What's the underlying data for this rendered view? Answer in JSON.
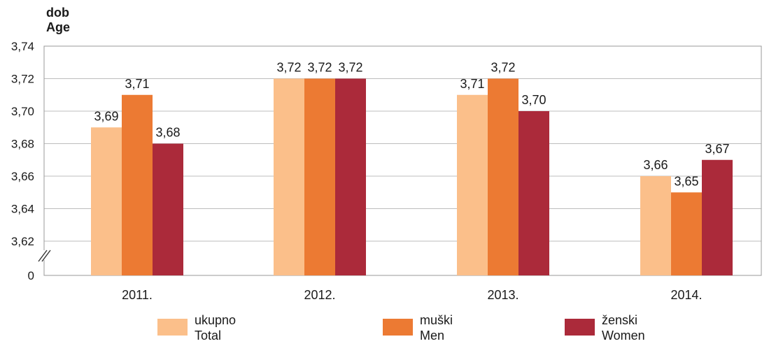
{
  "chart_data": {
    "type": "bar",
    "ylabel_lines": [
      "dob",
      "Age"
    ],
    "categories": [
      "2011.",
      "2012.",
      "2013.",
      "2014."
    ],
    "series": [
      {
        "name_lines": [
          "ukupno",
          "Total"
        ],
        "color": "#fbbf8a",
        "values": [
          3.69,
          3.72,
          3.71,
          3.66
        ],
        "labels": [
          "3,69",
          "3,72",
          "3,71",
          "3,66"
        ]
      },
      {
        "name_lines": [
          "muški",
          "Men"
        ],
        "color": "#ec7a33",
        "values": [
          3.71,
          3.72,
          3.72,
          3.65
        ],
        "labels": [
          "3,71",
          "3,72",
          "3,72",
          "3,65"
        ]
      },
      {
        "name_lines": [
          "ženski",
          "Women"
        ],
        "color": "#ab2a3a",
        "values": [
          3.68,
          3.72,
          3.7,
          3.67
        ],
        "labels": [
          "3,68",
          "3,72",
          "3,70",
          "3,67"
        ]
      }
    ],
    "yticks": [
      3.62,
      3.64,
      3.66,
      3.68,
      3.7,
      3.72,
      3.74
    ],
    "ytick_labels": [
      "3,62",
      "3,64",
      "3,66",
      "3,68",
      "3,70",
      "3,72",
      "3,74"
    ],
    "baseline_label": "0",
    "ylim": [
      3.62,
      3.74
    ],
    "axis_break": true,
    "grid": true,
    "legend_position": "bottom"
  }
}
